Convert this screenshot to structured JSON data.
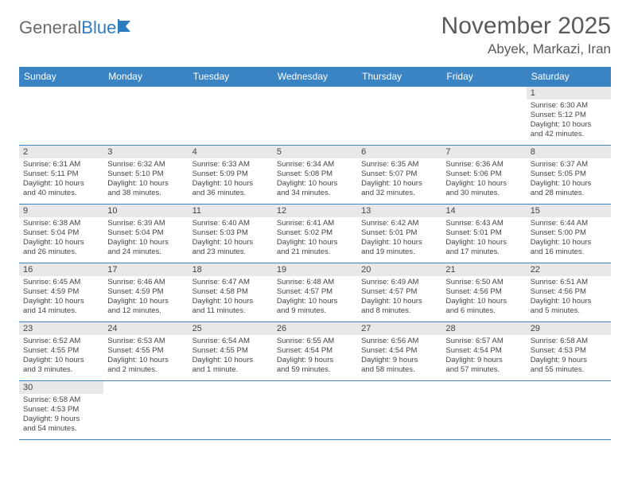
{
  "brand": {
    "part1": "General",
    "part2": "Blue"
  },
  "title": "November 2025",
  "location": "Abyek, Markazi, Iran",
  "colors": {
    "header_bg": "#3b84c4",
    "header_text": "#ffffff",
    "daynum_bg": "#e8e8e8",
    "border": "#3b84c4",
    "title_color": "#58595b",
    "brand_gray": "#6a6a6a",
    "brand_blue": "#2f7bbf",
    "body_text": "#444444",
    "page_bg": "#ffffff"
  },
  "fonts": {
    "title_size": 30,
    "location_size": 17,
    "th_size": 12,
    "daynum_size": 11,
    "cell_size": 9.5
  },
  "weekdays": [
    "Sunday",
    "Monday",
    "Tuesday",
    "Wednesday",
    "Thursday",
    "Friday",
    "Saturday"
  ],
  "weeks": [
    [
      null,
      null,
      null,
      null,
      null,
      null,
      {
        "n": "1",
        "sr": "Sunrise: 6:30 AM",
        "ss": "Sunset: 5:12 PM",
        "d1": "Daylight: 10 hours",
        "d2": "and 42 minutes."
      }
    ],
    [
      {
        "n": "2",
        "sr": "Sunrise: 6:31 AM",
        "ss": "Sunset: 5:11 PM",
        "d1": "Daylight: 10 hours",
        "d2": "and 40 minutes."
      },
      {
        "n": "3",
        "sr": "Sunrise: 6:32 AM",
        "ss": "Sunset: 5:10 PM",
        "d1": "Daylight: 10 hours",
        "d2": "and 38 minutes."
      },
      {
        "n": "4",
        "sr": "Sunrise: 6:33 AM",
        "ss": "Sunset: 5:09 PM",
        "d1": "Daylight: 10 hours",
        "d2": "and 36 minutes."
      },
      {
        "n": "5",
        "sr": "Sunrise: 6:34 AM",
        "ss": "Sunset: 5:08 PM",
        "d1": "Daylight: 10 hours",
        "d2": "and 34 minutes."
      },
      {
        "n": "6",
        "sr": "Sunrise: 6:35 AM",
        "ss": "Sunset: 5:07 PM",
        "d1": "Daylight: 10 hours",
        "d2": "and 32 minutes."
      },
      {
        "n": "7",
        "sr": "Sunrise: 6:36 AM",
        "ss": "Sunset: 5:06 PM",
        "d1": "Daylight: 10 hours",
        "d2": "and 30 minutes."
      },
      {
        "n": "8",
        "sr": "Sunrise: 6:37 AM",
        "ss": "Sunset: 5:05 PM",
        "d1": "Daylight: 10 hours",
        "d2": "and 28 minutes."
      }
    ],
    [
      {
        "n": "9",
        "sr": "Sunrise: 6:38 AM",
        "ss": "Sunset: 5:04 PM",
        "d1": "Daylight: 10 hours",
        "d2": "and 26 minutes."
      },
      {
        "n": "10",
        "sr": "Sunrise: 6:39 AM",
        "ss": "Sunset: 5:04 PM",
        "d1": "Daylight: 10 hours",
        "d2": "and 24 minutes."
      },
      {
        "n": "11",
        "sr": "Sunrise: 6:40 AM",
        "ss": "Sunset: 5:03 PM",
        "d1": "Daylight: 10 hours",
        "d2": "and 23 minutes."
      },
      {
        "n": "12",
        "sr": "Sunrise: 6:41 AM",
        "ss": "Sunset: 5:02 PM",
        "d1": "Daylight: 10 hours",
        "d2": "and 21 minutes."
      },
      {
        "n": "13",
        "sr": "Sunrise: 6:42 AM",
        "ss": "Sunset: 5:01 PM",
        "d1": "Daylight: 10 hours",
        "d2": "and 19 minutes."
      },
      {
        "n": "14",
        "sr": "Sunrise: 6:43 AM",
        "ss": "Sunset: 5:01 PM",
        "d1": "Daylight: 10 hours",
        "d2": "and 17 minutes."
      },
      {
        "n": "15",
        "sr": "Sunrise: 6:44 AM",
        "ss": "Sunset: 5:00 PM",
        "d1": "Daylight: 10 hours",
        "d2": "and 16 minutes."
      }
    ],
    [
      {
        "n": "16",
        "sr": "Sunrise: 6:45 AM",
        "ss": "Sunset: 4:59 PM",
        "d1": "Daylight: 10 hours",
        "d2": "and 14 minutes."
      },
      {
        "n": "17",
        "sr": "Sunrise: 6:46 AM",
        "ss": "Sunset: 4:59 PM",
        "d1": "Daylight: 10 hours",
        "d2": "and 12 minutes."
      },
      {
        "n": "18",
        "sr": "Sunrise: 6:47 AM",
        "ss": "Sunset: 4:58 PM",
        "d1": "Daylight: 10 hours",
        "d2": "and 11 minutes."
      },
      {
        "n": "19",
        "sr": "Sunrise: 6:48 AM",
        "ss": "Sunset: 4:57 PM",
        "d1": "Daylight: 10 hours",
        "d2": "and 9 minutes."
      },
      {
        "n": "20",
        "sr": "Sunrise: 6:49 AM",
        "ss": "Sunset: 4:57 PM",
        "d1": "Daylight: 10 hours",
        "d2": "and 8 minutes."
      },
      {
        "n": "21",
        "sr": "Sunrise: 6:50 AM",
        "ss": "Sunset: 4:56 PM",
        "d1": "Daylight: 10 hours",
        "d2": "and 6 minutes."
      },
      {
        "n": "22",
        "sr": "Sunrise: 6:51 AM",
        "ss": "Sunset: 4:56 PM",
        "d1": "Daylight: 10 hours",
        "d2": "and 5 minutes."
      }
    ],
    [
      {
        "n": "23",
        "sr": "Sunrise: 6:52 AM",
        "ss": "Sunset: 4:55 PM",
        "d1": "Daylight: 10 hours",
        "d2": "and 3 minutes."
      },
      {
        "n": "24",
        "sr": "Sunrise: 6:53 AM",
        "ss": "Sunset: 4:55 PM",
        "d1": "Daylight: 10 hours",
        "d2": "and 2 minutes."
      },
      {
        "n": "25",
        "sr": "Sunrise: 6:54 AM",
        "ss": "Sunset: 4:55 PM",
        "d1": "Daylight: 10 hours",
        "d2": "and 1 minute."
      },
      {
        "n": "26",
        "sr": "Sunrise: 6:55 AM",
        "ss": "Sunset: 4:54 PM",
        "d1": "Daylight: 9 hours",
        "d2": "and 59 minutes."
      },
      {
        "n": "27",
        "sr": "Sunrise: 6:56 AM",
        "ss": "Sunset: 4:54 PM",
        "d1": "Daylight: 9 hours",
        "d2": "and 58 minutes."
      },
      {
        "n": "28",
        "sr": "Sunrise: 6:57 AM",
        "ss": "Sunset: 4:54 PM",
        "d1": "Daylight: 9 hours",
        "d2": "and 57 minutes."
      },
      {
        "n": "29",
        "sr": "Sunrise: 6:58 AM",
        "ss": "Sunset: 4:53 PM",
        "d1": "Daylight: 9 hours",
        "d2": "and 55 minutes."
      }
    ],
    [
      {
        "n": "30",
        "sr": "Sunrise: 6:58 AM",
        "ss": "Sunset: 4:53 PM",
        "d1": "Daylight: 9 hours",
        "d2": "and 54 minutes."
      },
      null,
      null,
      null,
      null,
      null,
      null
    ]
  ]
}
